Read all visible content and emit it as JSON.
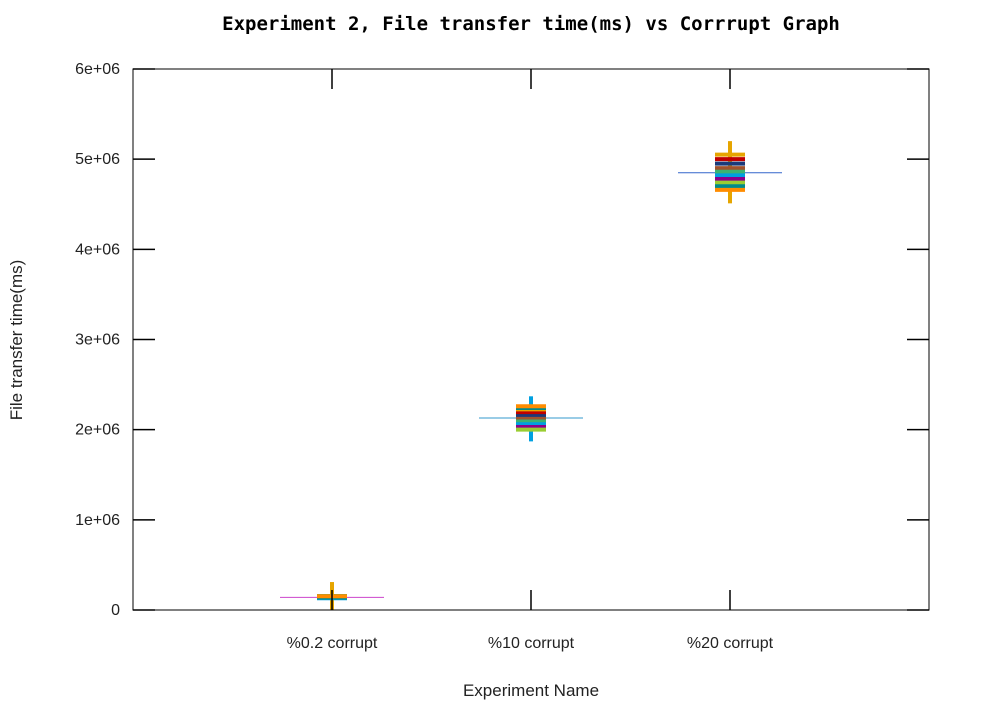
{
  "chart_data": {
    "type": "scatter",
    "title": "Experiment 2, File transfer time(ms) vs Corrrupt Graph",
    "xlabel": "Experiment Name",
    "ylabel": "File transfer time(ms)",
    "categories": [
      "%0.2 corrupt",
      "%10 corrupt",
      "%20 corrupt"
    ],
    "ylim": [
      0,
      6000000
    ],
    "yticks": [
      0,
      1000000,
      2000000,
      3000000,
      4000000,
      5000000,
      6000000
    ],
    "ytick_labels": [
      "0",
      "1e+06",
      "2e+06",
      "3e+06",
      "4e+06",
      "5e+06",
      "6e+06"
    ],
    "grid": false,
    "series": [
      {
        "color": "#e6a500",
        "values": [
          140000,
          2210000,
          5050000
        ]
      },
      {
        "color": "#c00000",
        "values": [
          150000,
          2180000,
          5000000
        ]
      },
      {
        "color": "#1a3a7a",
        "values": [
          145000,
          2150000,
          4950000
        ]
      },
      {
        "color": "#a0522d",
        "values": [
          135000,
          2120000,
          4900000
        ]
      },
      {
        "color": "#3cb371",
        "values": [
          155000,
          2090000,
          4860000
        ]
      },
      {
        "color": "#00a0e0",
        "values": [
          130000,
          2060000,
          4820000
        ]
      },
      {
        "color": "#8b008b",
        "values": [
          148000,
          2030000,
          4780000
        ]
      },
      {
        "color": "#9acd32",
        "values": [
          142000,
          2000000,
          4740000
        ]
      },
      {
        "color": "#008b8b",
        "values": [
          138000,
          2240000,
          4700000
        ]
      },
      {
        "color": "#ff8c00",
        "values": [
          152000,
          2260000,
          4660000
        ]
      }
    ],
    "medians": [
      {
        "color": "#cc44cc",
        "value": 140000
      },
      {
        "color": "#3399cc",
        "value": 2130000
      },
      {
        "color": "#3366cc",
        "value": 4850000
      }
    ],
    "extremes": [
      {
        "color": "#e6a500",
        "low": 0,
        "high": 310000
      },
      {
        "color": "#00a0e0",
        "low": 1870000,
        "high": 2370000
      },
      {
        "color": "#e6a500",
        "low": 4510000,
        "high": 5200000
      }
    ]
  }
}
